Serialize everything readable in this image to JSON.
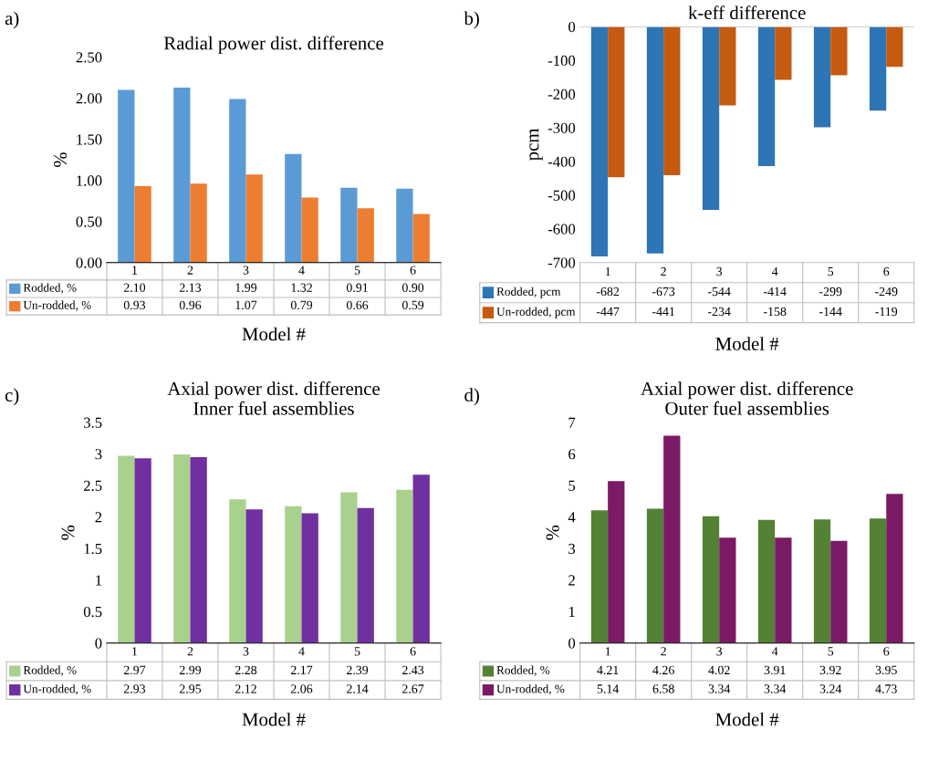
{
  "chart_data": [
    {
      "type": "bar",
      "title": "Radial power dist. difference",
      "xlabel": "Model #",
      "ylabel": "%",
      "annotations": [
        "a)"
      ],
      "categories": [
        "1",
        "2",
        "3",
        "4",
        "5",
        "6"
      ],
      "ylim": [
        0,
        2.5
      ],
      "yticks": [
        {
          "value": 0,
          "label": "0.00"
        },
        {
          "value": 0.5,
          "label": "0.50"
        },
        {
          "value": 1,
          "label": "1.00"
        },
        {
          "value": 1.5,
          "label": "1.50"
        },
        {
          "value": 2,
          "label": "2.00"
        },
        {
          "value": 2.5,
          "label": "2.50"
        }
      ],
      "legend": "bottom",
      "series": [
        {
          "name": "Rodded, %",
          "color": "#5b9bd5",
          "values": [
            2.1,
            2.13,
            1.99,
            1.32,
            0.91,
            0.9
          ],
          "value_labels": [
            "2.10",
            "2.13",
            "1.99",
            "1.32",
            "0.91",
            "0.90"
          ]
        },
        {
          "name": "Un-rodded, %",
          "color": "#ed7d31",
          "values": [
            0.93,
            0.96,
            1.07,
            0.79,
            0.66,
            0.59
          ],
          "value_labels": [
            "0.93",
            "0.96",
            "1.07",
            "0.79",
            "0.66",
            "0.59"
          ]
        }
      ]
    },
    {
      "type": "bar",
      "title": "k-eff difference",
      "xlabel": "Model #",
      "ylabel": "pcm",
      "annotations": [
        "b)"
      ],
      "categories": [
        "1",
        "2",
        "3",
        "4",
        "5",
        "6"
      ],
      "ylim": [
        -700,
        0
      ],
      "yticks": [
        -700,
        -600,
        -500,
        -400,
        -300,
        -200,
        -100,
        0
      ],
      "legend": "bottom",
      "series": [
        {
          "name": "Rodded, pcm",
          "color": "#2e75b6",
          "values": [
            -682,
            -673,
            -544,
            -414,
            -299,
            -249
          ],
          "value_labels": [
            "-682",
            "-673",
            "-544",
            "-414",
            "-299",
            "-249"
          ]
        },
        {
          "name": "Un-rodded, pcm",
          "color": "#c55a11",
          "values": [
            -447,
            -441,
            -234,
            -158,
            -144,
            -119
          ],
          "value_labels": [
            "-447",
            "-441",
            "-234",
            "-158",
            "-144",
            "-119"
          ]
        }
      ]
    },
    {
      "type": "bar",
      "title": "Axial power dist. difference\nInner fuel assemblies",
      "xlabel": "Model #",
      "ylabel": "%",
      "annotations": [
        "c)"
      ],
      "categories": [
        "1",
        "2",
        "3",
        "4",
        "5",
        "6"
      ],
      "ylim": [
        0,
        3.5
      ],
      "yticks": [
        0,
        0.5,
        1,
        1.5,
        2,
        2.5,
        3,
        3.5
      ],
      "legend": "bottom",
      "series": [
        {
          "name": "Rodded, %",
          "color": "#a9d18e",
          "values": [
            2.97,
            2.99,
            2.28,
            2.17,
            2.39,
            2.43
          ],
          "value_labels": [
            "2.97",
            "2.99",
            "2.28",
            "2.17",
            "2.39",
            "2.43"
          ]
        },
        {
          "name": "Un-rodded, %",
          "color": "#7030a0",
          "values": [
            2.93,
            2.95,
            2.12,
            2.06,
            2.14,
            2.67
          ],
          "value_labels": [
            "2.93",
            "2.95",
            "2.12",
            "2.06",
            "2.14",
            "2.67"
          ]
        }
      ]
    },
    {
      "type": "bar",
      "title": "Axial power dist. difference\nOuter fuel assemblies",
      "xlabel": "Model #",
      "ylabel": "%",
      "annotations": [
        "d)"
      ],
      "categories": [
        "1",
        "2",
        "3",
        "4",
        "5",
        "6"
      ],
      "ylim": [
        0,
        7
      ],
      "yticks": [
        0,
        1,
        2,
        3,
        4,
        5,
        6,
        7
      ],
      "legend": "bottom",
      "series": [
        {
          "name": "Rodded, %",
          "color": "#548235",
          "values": [
            4.21,
            4.26,
            4.02,
            3.91,
            3.92,
            3.95
          ],
          "value_labels": [
            "4.21",
            "4.26",
            "4.02",
            "3.91",
            "3.92",
            "3.95"
          ]
        },
        {
          "name": "Un-rodded, %",
          "color": "#7b1a66",
          "values": [
            5.14,
            6.58,
            3.34,
            3.34,
            3.24,
            4.73
          ],
          "value_labels": [
            "5.14",
            "6.58",
            "3.34",
            "3.34",
            "3.24",
            "4.73"
          ]
        }
      ]
    }
  ]
}
